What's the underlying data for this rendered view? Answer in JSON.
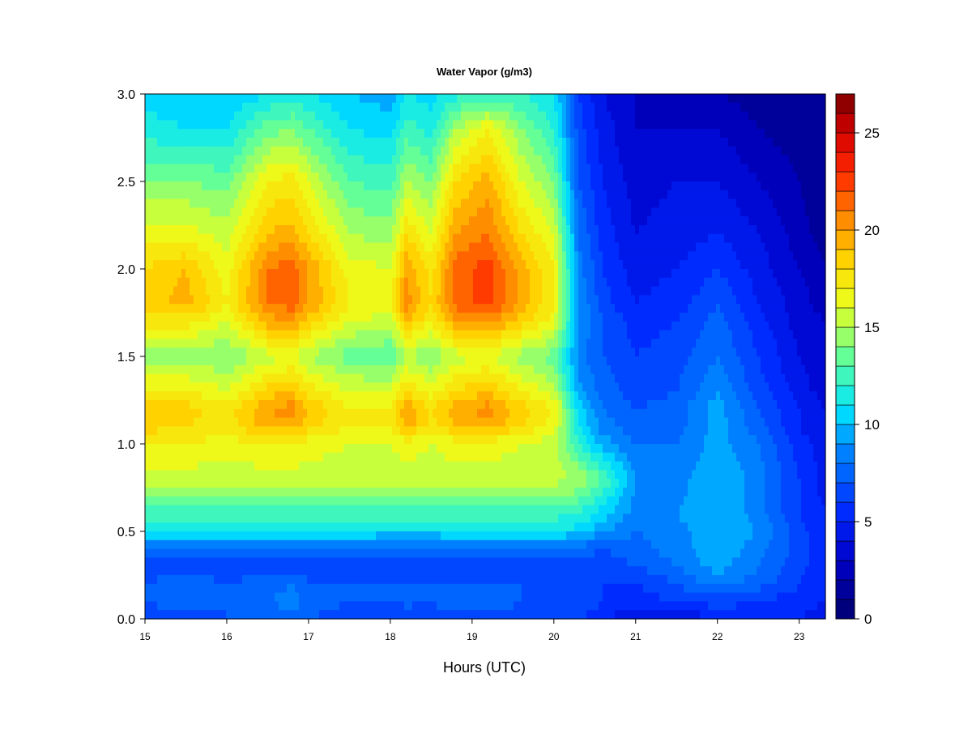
{
  "chart_data": {
    "type": "heatmap",
    "title": "Water Vapor (g/m3)",
    "xlabel": "Hours (UTC)",
    "ylabel": "",
    "xlim": [
      15,
      23.32
    ],
    "ylim": [
      0,
      3.0
    ],
    "x_ticks": [
      "15",
      "16",
      "17",
      "18",
      "19",
      "20",
      "21",
      "22",
      "23"
    ],
    "y_ticks": [
      "0.0",
      "0.5",
      "1.0",
      "1.5",
      "2.0",
      "2.5",
      "3.0"
    ],
    "colorbar": {
      "min": 0,
      "max": 27,
      "step": 1,
      "tick_labels": [
        "0",
        "5",
        "10",
        "15",
        "20",
        "25"
      ]
    },
    "x_hours": [
      15.0,
      15.5,
      16.0,
      16.5,
      16.8,
      17.0,
      17.5,
      18.0,
      18.2,
      18.5,
      18.8,
      19.2,
      19.6,
      20.0,
      20.3,
      20.6,
      21.0,
      21.5,
      22.0,
      22.5,
      23.0,
      23.32
    ],
    "y_km": [
      0.0,
      0.1,
      0.2,
      0.3,
      0.4,
      0.5,
      0.6,
      0.8,
      1.0,
      1.1,
      1.2,
      1.3,
      1.5,
      1.7,
      1.8,
      2.0,
      2.2,
      2.5,
      2.8,
      3.0
    ],
    "values": [
      [
        6.5,
        6.5,
        7.0,
        7.2,
        7.5,
        7.0,
        6.5,
        6.5,
        6.5,
        6.5,
        6.8,
        6.8,
        6.5,
        6.5,
        6.0,
        5.5,
        3.5,
        4.0,
        5.0,
        5.5,
        5.0,
        4.5
      ],
      [
        7.0,
        7.5,
        7.0,
        8.0,
        8.5,
        7.5,
        7.0,
        7.0,
        7.2,
        7.0,
        7.5,
        7.5,
        7.0,
        6.5,
        6.5,
        6.0,
        5.5,
        6.0,
        6.5,
        6.0,
        5.5,
        5.0
      ],
      [
        7.0,
        7.5,
        7.0,
        7.5,
        8.0,
        7.0,
        7.0,
        7.0,
        7.0,
        7.0,
        7.0,
        7.0,
        7.0,
        6.5,
        6.5,
        6.0,
        6.0,
        7.0,
        8.5,
        7.5,
        6.0,
        5.0
      ],
      [
        6.5,
        6.5,
        6.5,
        6.5,
        6.5,
        6.5,
        6.5,
        6.5,
        6.5,
        6.5,
        6.5,
        6.5,
        6.5,
        6.5,
        6.5,
        6.5,
        7.0,
        8.0,
        9.5,
        8.0,
        6.5,
        5.0
      ],
      [
        8.0,
        8.0,
        8.0,
        8.0,
        8.0,
        8.0,
        8.0,
        8.0,
        8.0,
        8.0,
        8.0,
        8.0,
        8.0,
        8.0,
        7.5,
        7.0,
        7.5,
        8.5,
        9.8,
        8.5,
        6.5,
        5.0
      ],
      [
        11.0,
        11.0,
        11.0,
        11.0,
        11.0,
        11.0,
        11.0,
        10.5,
        10.5,
        10.5,
        11.0,
        11.0,
        11.0,
        11.0,
        10.5,
        9.0,
        8.0,
        8.5,
        10.0,
        9.0,
        6.5,
        5.0
      ],
      [
        12.5,
        12.5,
        12.5,
        12.5,
        12.5,
        12.5,
        12.5,
        12.5,
        12.5,
        12.5,
        12.5,
        12.5,
        12.5,
        12.5,
        12.0,
        10.5,
        8.5,
        9.0,
        10.0,
        8.5,
        6.0,
        5.0
      ],
      [
        15.5,
        15.5,
        15.5,
        15.5,
        15.5,
        15.5,
        15.5,
        15.5,
        15.5,
        15.5,
        15.5,
        15.5,
        15.5,
        15.5,
        15.0,
        13.0,
        9.0,
        8.5,
        10.0,
        8.5,
        6.0,
        4.5
      ],
      [
        17.0,
        17.0,
        16.5,
        17.0,
        17.0,
        16.5,
        16.0,
        16.0,
        16.5,
        16.0,
        16.5,
        16.5,
        16.0,
        15.5,
        12.0,
        9.5,
        8.0,
        8.0,
        9.5,
        8.0,
        5.5,
        4.5
      ],
      [
        18.5,
        18.0,
        17.5,
        19.5,
        19.5,
        18.5,
        17.0,
        17.0,
        19.5,
        17.5,
        19.0,
        19.5,
        18.0,
        16.5,
        11.0,
        8.5,
        7.5,
        7.5,
        9.5,
        7.5,
        5.0,
        4.0
      ],
      [
        18.5,
        18.5,
        17.5,
        20.0,
        20.5,
        19.0,
        17.0,
        17.0,
        20.0,
        18.0,
        19.5,
        20.5,
        18.5,
        17.0,
        10.5,
        8.0,
        7.0,
        7.5,
        9.5,
        7.0,
        5.0,
        4.0
      ],
      [
        17.0,
        17.0,
        16.0,
        18.5,
        19.0,
        17.5,
        16.0,
        16.0,
        18.0,
        16.5,
        18.0,
        19.0,
        17.0,
        15.5,
        9.5,
        7.5,
        6.5,
        7.0,
        9.0,
        6.5,
        4.5,
        3.5
      ],
      [
        14.5,
        14.5,
        14.0,
        15.5,
        16.0,
        15.0,
        13.5,
        13.0,
        15.0,
        14.0,
        15.5,
        16.0,
        14.5,
        13.5,
        8.5,
        7.0,
        6.0,
        6.5,
        8.0,
        6.0,
        4.0,
        3.0
      ],
      [
        17.5,
        17.5,
        16.0,
        19.5,
        20.0,
        18.5,
        16.0,
        15.5,
        19.0,
        17.0,
        20.0,
        20.5,
        18.5,
        16.5,
        9.0,
        7.0,
        5.5,
        6.0,
        7.5,
        5.5,
        3.5,
        3.0
      ],
      [
        18.5,
        19.5,
        17.0,
        21.0,
        21.5,
        20.0,
        17.0,
        16.5,
        20.5,
        18.0,
        21.5,
        22.5,
        19.5,
        17.0,
        9.0,
        6.5,
        5.0,
        5.5,
        7.0,
        5.0,
        3.5,
        2.5
      ],
      [
        18.0,
        19.0,
        16.5,
        21.0,
        21.5,
        20.0,
        16.5,
        16.0,
        20.0,
        17.5,
        21.5,
        22.5,
        19.5,
        17.0,
        8.5,
        6.0,
        4.5,
        5.0,
        6.0,
        4.5,
        3.0,
        2.0
      ],
      [
        16.5,
        16.5,
        15.5,
        19.0,
        19.5,
        18.0,
        15.0,
        14.5,
        18.0,
        16.0,
        20.0,
        21.0,
        18.0,
        16.0,
        8.0,
        5.5,
        4.0,
        4.5,
        5.0,
        4.0,
        2.5,
        1.5
      ],
      [
        14.0,
        14.0,
        13.5,
        17.0,
        17.5,
        16.0,
        13.0,
        12.5,
        15.0,
        14.0,
        18.0,
        19.5,
        16.0,
        14.0,
        7.0,
        5.0,
        3.5,
        4.0,
        4.0,
        3.0,
        2.0,
        1.0
      ],
      [
        11.5,
        11.0,
        11.0,
        13.5,
        14.0,
        13.0,
        11.0,
        10.5,
        12.5,
        11.5,
        15.0,
        17.0,
        14.0,
        12.0,
        6.5,
        4.5,
        3.0,
        3.0,
        3.0,
        2.0,
        1.5,
        1.0
      ],
      [
        10.5,
        10.0,
        10.0,
        11.0,
        11.5,
        11.0,
        10.0,
        9.5,
        11.0,
        10.5,
        11.5,
        12.0,
        12.0,
        11.0,
        6.0,
        4.0,
        3.0,
        2.5,
        2.0,
        1.5,
        1.0,
        1.0
      ]
    ]
  }
}
